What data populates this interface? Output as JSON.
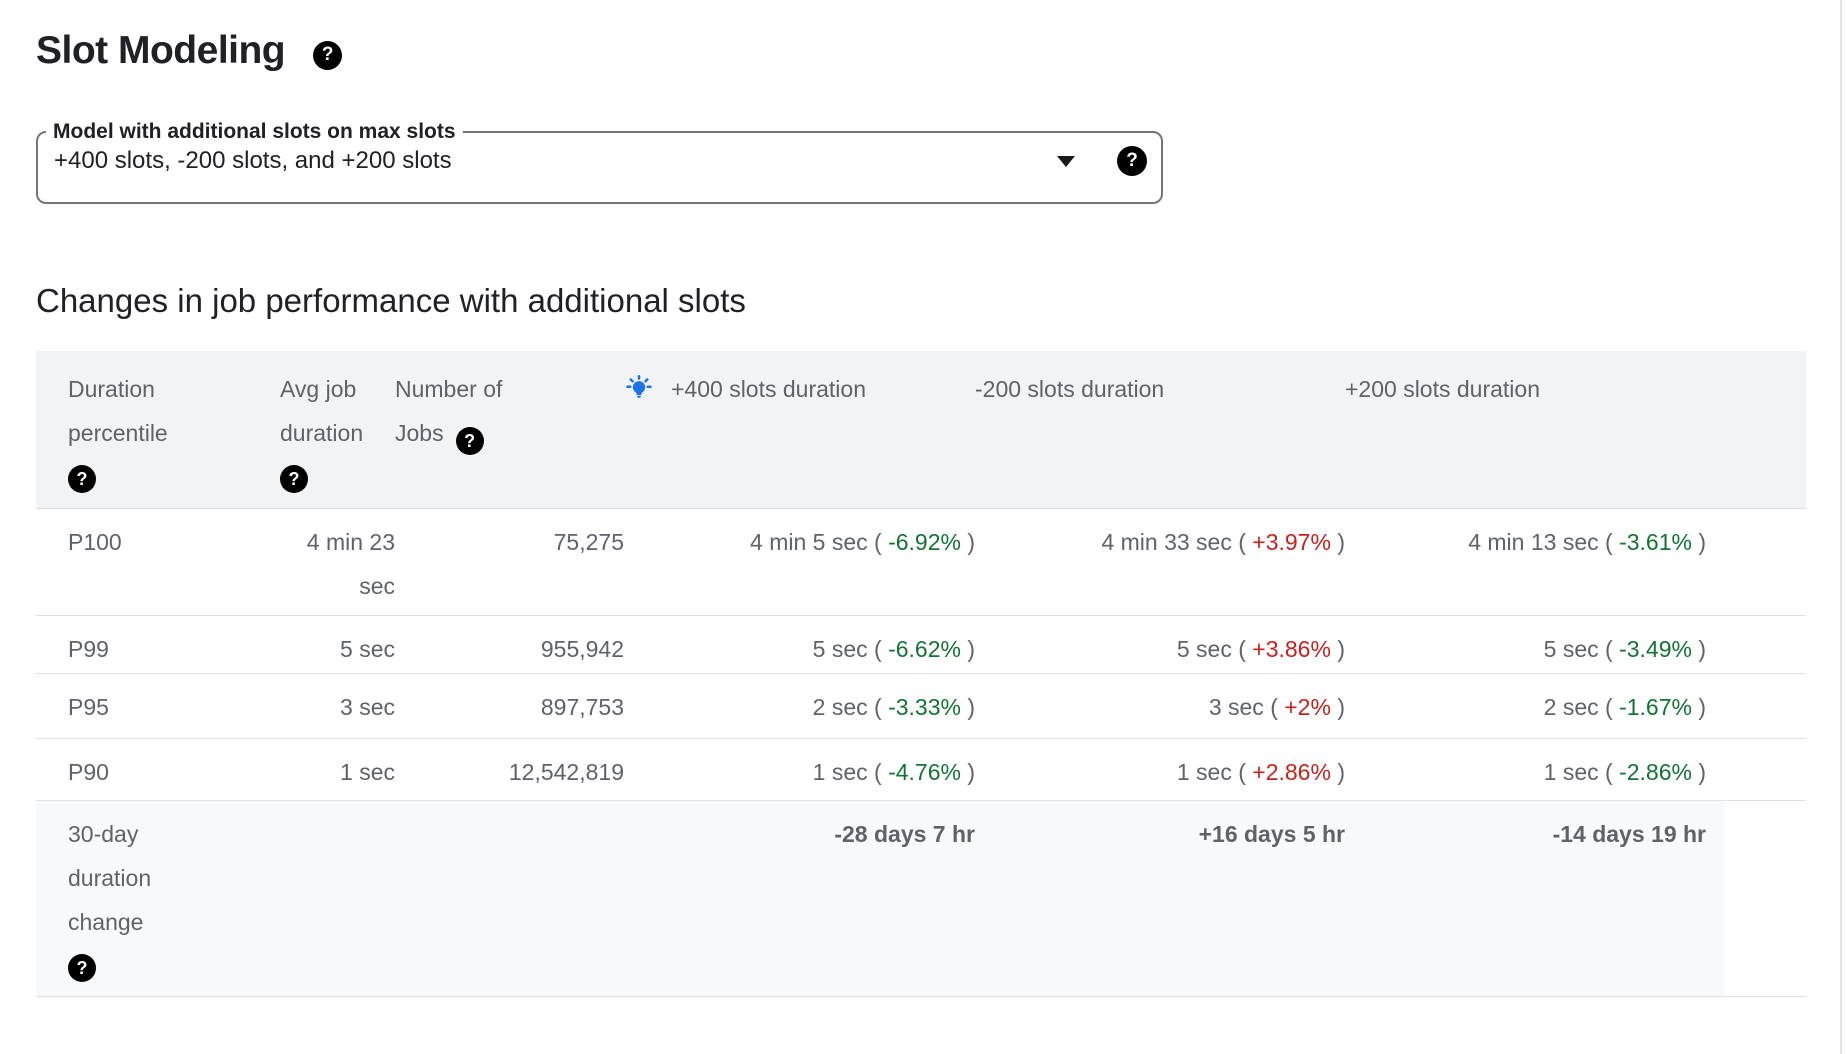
{
  "page": {
    "title": "Slot Modeling",
    "section_heading": "Changes in job performance with additional slots"
  },
  "model_select": {
    "label": "Model with additional slots on max slots",
    "value": "+400 slots, -200 slots, and +200 slots"
  },
  "icons": {
    "help_glyph": "?",
    "dropdown_arrow": "caret-down",
    "recommendation_bulb": "tips-bulb"
  },
  "colors": {
    "increase_red": "#c5221f",
    "decrease_green": "#137333",
    "bulb_blue": "#1a73e8",
    "header_bg": "#f1f3f4",
    "footer_bg": "#f8f9fa",
    "border": "#e0e0e0",
    "text_primary": "#202124",
    "text_secondary": "#5f6368"
  },
  "table": {
    "columns": [
      {
        "lines": [
          "Duration",
          "percentile"
        ],
        "has_help": true
      },
      {
        "lines": [
          "Avg job",
          "duration"
        ],
        "has_help": true
      },
      {
        "lines": [
          "Number of",
          "Jobs"
        ],
        "has_help": true
      },
      {
        "label": "+400 slots duration",
        "has_bulb": true
      },
      {
        "label": "-200 slots duration"
      },
      {
        "label": "+200 slots duration"
      }
    ],
    "rows": [
      {
        "percentile": "P100",
        "avg_duration": "4 min 23 sec",
        "jobs": "75,275",
        "plus400": {
          "duration": "4 min 5 sec",
          "pct": "-6.92%",
          "trend": "down"
        },
        "minus200": {
          "duration": "4 min 33 sec",
          "pct": "+3.97%",
          "trend": "up"
        },
        "plus200": {
          "duration": "4 min 13 sec",
          "pct": "-3.61%",
          "trend": "down"
        }
      },
      {
        "percentile": "P99",
        "avg_duration": "5 sec",
        "jobs": "955,942",
        "plus400": {
          "duration": "5 sec",
          "pct": "-6.62%",
          "trend": "down"
        },
        "minus200": {
          "duration": "5 sec",
          "pct": "+3.86%",
          "trend": "up"
        },
        "plus200": {
          "duration": "5 sec",
          "pct": "-3.49%",
          "trend": "down"
        }
      },
      {
        "percentile": "P95",
        "avg_duration": "3 sec",
        "jobs": "897,753",
        "plus400": {
          "duration": "2 sec",
          "pct": "-3.33%",
          "trend": "down"
        },
        "minus200": {
          "duration": "3 sec",
          "pct": "+2%",
          "trend": "up"
        },
        "plus200": {
          "duration": "2 sec",
          "pct": "-1.67%",
          "trend": "down"
        }
      },
      {
        "percentile": "P90",
        "avg_duration": "1 sec",
        "jobs": "12,542,819",
        "plus400": {
          "duration": "1 sec",
          "pct": "-4.76%",
          "trend": "down"
        },
        "minus200": {
          "duration": "1 sec",
          "pct": "+2.86%",
          "trend": "up"
        },
        "plus200": {
          "duration": "1 sec",
          "pct": "-2.86%",
          "trend": "down"
        }
      }
    ],
    "footer": {
      "label_lines": [
        "30-day",
        "duration",
        "change"
      ],
      "has_help": true,
      "plus400": {
        "text": "-28 days 7 hr",
        "trend": "down"
      },
      "minus200": {
        "text": "+16 days 5 hr",
        "trend": "up"
      },
      "plus200": {
        "text": "-14 days 19 hr",
        "trend": "down"
      }
    }
  }
}
